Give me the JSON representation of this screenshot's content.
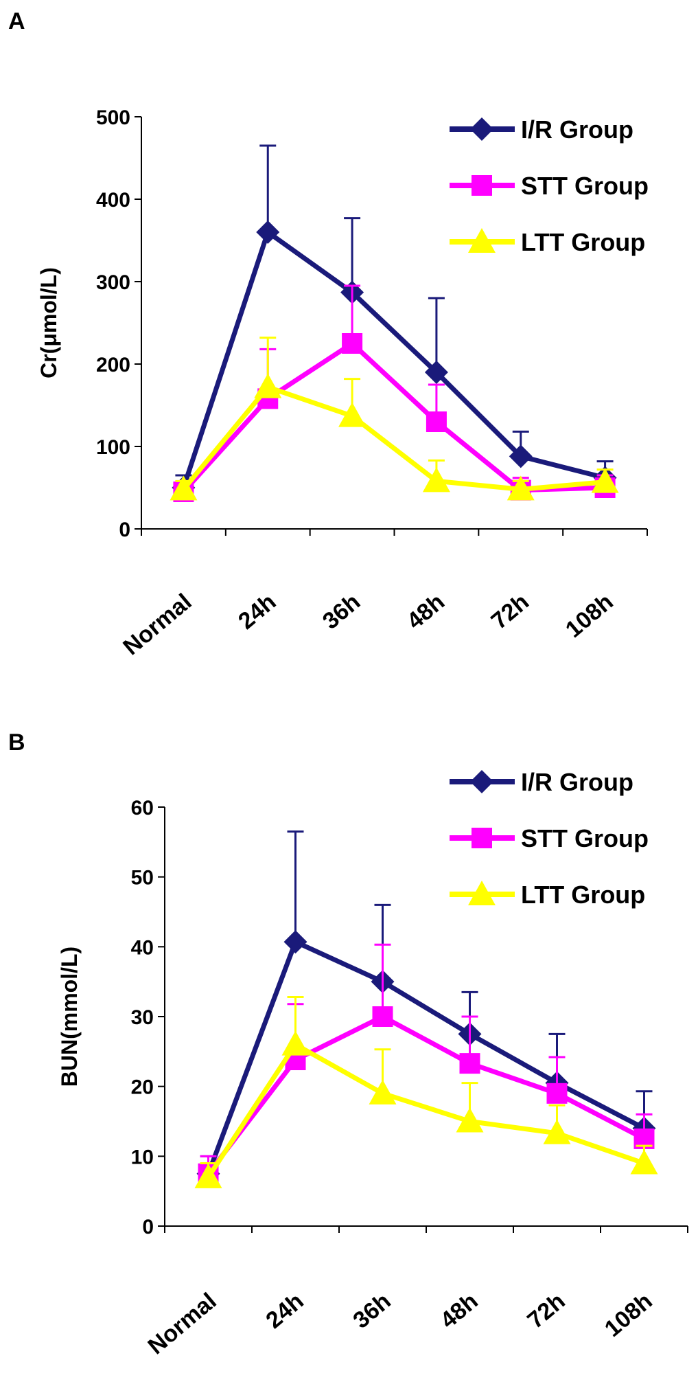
{
  "chart_data": [
    {
      "panel": "A",
      "type": "line",
      "ylabel": "Cr(μmol/L)",
      "xlabel": "",
      "ylim": [
        0,
        500
      ],
      "yticks": [
        0,
        100,
        200,
        300,
        400,
        500
      ],
      "categories": [
        "Normal",
        "24h",
        "36h",
        "48h",
        "72h",
        "108h"
      ],
      "legend_position": "top-right",
      "series": [
        {
          "name": "I/R Group",
          "marker": "diamond",
          "color": "#1a1a7a",
          "values": [
            50,
            360,
            287,
            190,
            88,
            62
          ],
          "errors": [
            15,
            105,
            90,
            90,
            30,
            20
          ]
        },
        {
          "name": "STT Group",
          "marker": "square",
          "color": "#ff00ff",
          "values": [
            45,
            158,
            225,
            130,
            47,
            50
          ],
          "errors": [
            12,
            60,
            70,
            45,
            15,
            15
          ]
        },
        {
          "name": "LTT Group",
          "marker": "triangle",
          "color": "#ffff00",
          "values": [
            48,
            172,
            137,
            58,
            48,
            57
          ],
          "errors": [
            10,
            60,
            45,
            25,
            10,
            15
          ]
        }
      ]
    },
    {
      "panel": "B",
      "type": "line",
      "ylabel": "BUN(mmol/L)",
      "xlabel": "",
      "ylim": [
        0,
        60
      ],
      "yticks": [
        0,
        10,
        20,
        30,
        40,
        50,
        60
      ],
      "categories": [
        "Normal",
        "24h",
        "36h",
        "48h",
        "72h",
        "108h"
      ],
      "legend_position": "top-right",
      "series": [
        {
          "name": "I/R Group",
          "marker": "diamond",
          "color": "#1a1a7a",
          "values": [
            7.5,
            40.7,
            35.0,
            27.5,
            20.5,
            14.0
          ],
          "errors": [
            2.5,
            15.8,
            11.0,
            6.0,
            7.0,
            5.3
          ]
        },
        {
          "name": "STT Group",
          "marker": "square",
          "color": "#ff00ff",
          "values": [
            7.5,
            23.8,
            30.0,
            23.3,
            19.0,
            12.5
          ],
          "errors": [
            2.5,
            8.0,
            10.3,
            6.7,
            5.2,
            3.5
          ]
        },
        {
          "name": "LTT Group",
          "marker": "triangle",
          "color": "#ffff00",
          "values": [
            7.0,
            26.0,
            19.0,
            15.0,
            13.3,
            9.0
          ],
          "errors": [
            2.0,
            6.8,
            6.3,
            5.5,
            4.0,
            2.5
          ]
        }
      ]
    }
  ]
}
